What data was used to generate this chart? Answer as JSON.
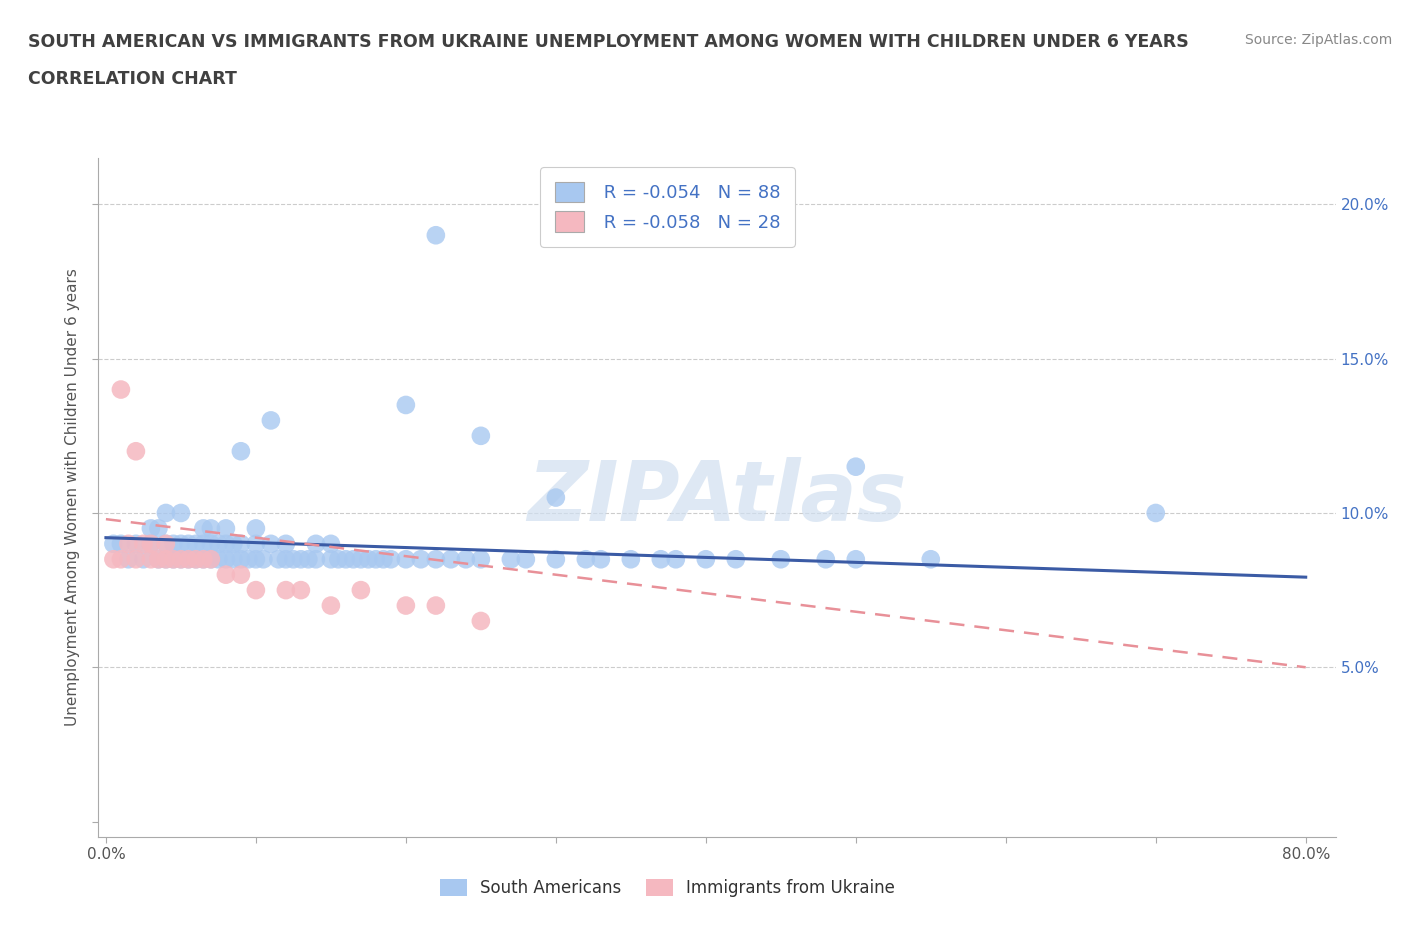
{
  "title_line1": "SOUTH AMERICAN VS IMMIGRANTS FROM UKRAINE UNEMPLOYMENT AMONG WOMEN WITH CHILDREN UNDER 6 YEARS",
  "title_line2": "CORRELATION CHART",
  "source_text": "Source: ZipAtlas.com",
  "ylabel": "Unemployment Among Women with Children Under 6 years",
  "xlim": [
    -0.005,
    0.82
  ],
  "ylim": [
    -0.005,
    0.215
  ],
  "xticks": [
    0.0,
    0.1,
    0.2,
    0.3,
    0.4,
    0.5,
    0.6,
    0.7,
    0.8
  ],
  "xticklabels": [
    "0.0%",
    "",
    "",
    "",
    "",
    "",
    "",
    "",
    "80.0%"
  ],
  "yticks": [
    0.0,
    0.05,
    0.1,
    0.15,
    0.2
  ],
  "yticklabels_right": [
    "",
    "5.0%",
    "10.0%",
    "15.0%",
    "20.0%"
  ],
  "legend_r1": "R = -0.054",
  "legend_n1": "N = 88",
  "legend_r2": "R = -0.058",
  "legend_n2": "N = 28",
  "label1": "South Americans",
  "label2": "Immigrants from Ukraine",
  "color_blue": "#A8C8F0",
  "color_pink": "#F5B8C0",
  "color_blue_line": "#3B5BA5",
  "color_pink_line": "#E89098",
  "color_title": "#404040",
  "watermark_color": "#D0DFF0",
  "blue_trend": [
    0.092,
    -0.016
  ],
  "pink_trend": [
    0.098,
    -0.06
  ],
  "blue_dots_x": [
    0.005,
    0.01,
    0.015,
    0.02,
    0.025,
    0.03,
    0.03,
    0.035,
    0.035,
    0.04,
    0.04,
    0.04,
    0.045,
    0.045,
    0.05,
    0.05,
    0.05,
    0.055,
    0.055,
    0.06,
    0.06,
    0.065,
    0.065,
    0.065,
    0.07,
    0.07,
    0.07,
    0.075,
    0.075,
    0.08,
    0.08,
    0.08,
    0.085,
    0.085,
    0.09,
    0.09,
    0.095,
    0.1,
    0.1,
    0.1,
    0.105,
    0.11,
    0.115,
    0.12,
    0.12,
    0.125,
    0.13,
    0.135,
    0.14,
    0.14,
    0.15,
    0.15,
    0.155,
    0.16,
    0.165,
    0.17,
    0.175,
    0.18,
    0.185,
    0.19,
    0.2,
    0.21,
    0.22,
    0.23,
    0.24,
    0.25,
    0.27,
    0.28,
    0.3,
    0.32,
    0.33,
    0.35,
    0.37,
    0.38,
    0.4,
    0.42,
    0.45,
    0.48,
    0.5,
    0.55,
    0.2,
    0.25,
    0.3,
    0.5,
    0.7,
    0.09,
    0.11,
    0.22
  ],
  "blue_dots_y": [
    0.09,
    0.09,
    0.085,
    0.09,
    0.085,
    0.09,
    0.095,
    0.085,
    0.095,
    0.085,
    0.09,
    0.1,
    0.085,
    0.09,
    0.085,
    0.09,
    0.1,
    0.085,
    0.09,
    0.085,
    0.09,
    0.085,
    0.09,
    0.095,
    0.085,
    0.09,
    0.095,
    0.085,
    0.09,
    0.085,
    0.09,
    0.095,
    0.085,
    0.09,
    0.085,
    0.09,
    0.085,
    0.085,
    0.09,
    0.095,
    0.085,
    0.09,
    0.085,
    0.085,
    0.09,
    0.085,
    0.085,
    0.085,
    0.085,
    0.09,
    0.085,
    0.09,
    0.085,
    0.085,
    0.085,
    0.085,
    0.085,
    0.085,
    0.085,
    0.085,
    0.085,
    0.085,
    0.085,
    0.085,
    0.085,
    0.085,
    0.085,
    0.085,
    0.085,
    0.085,
    0.085,
    0.085,
    0.085,
    0.085,
    0.085,
    0.085,
    0.085,
    0.085,
    0.085,
    0.085,
    0.135,
    0.125,
    0.105,
    0.115,
    0.1,
    0.12,
    0.13,
    0.19
  ],
  "pink_dots_x": [
    0.005,
    0.01,
    0.015,
    0.02,
    0.025,
    0.03,
    0.03,
    0.035,
    0.04,
    0.04,
    0.045,
    0.05,
    0.055,
    0.06,
    0.065,
    0.07,
    0.08,
    0.09,
    0.1,
    0.12,
    0.13,
    0.15,
    0.17,
    0.2,
    0.22,
    0.25,
    0.01,
    0.02
  ],
  "pink_dots_y": [
    0.085,
    0.085,
    0.09,
    0.085,
    0.09,
    0.085,
    0.09,
    0.085,
    0.085,
    0.09,
    0.085,
    0.085,
    0.085,
    0.085,
    0.085,
    0.085,
    0.08,
    0.08,
    0.075,
    0.075,
    0.075,
    0.07,
    0.075,
    0.07,
    0.07,
    0.065,
    0.14,
    0.12
  ]
}
